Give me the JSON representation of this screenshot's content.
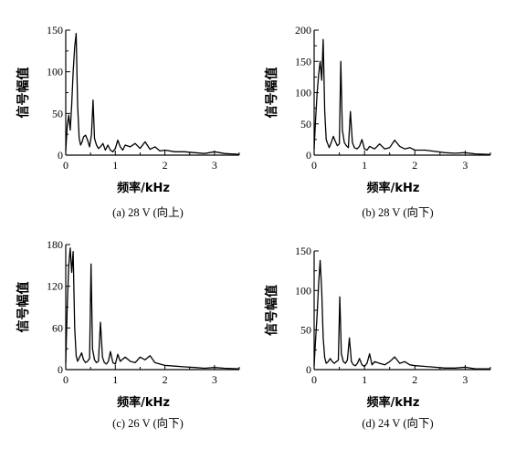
{
  "chart_data": [
    {
      "type": "line",
      "caption": "(a) 28 V (向上)",
      "xlabel": "频率/kHz",
      "ylabel": "信号幅值",
      "xlim": [
        0,
        3.5
      ],
      "ylim": [
        0,
        150
      ],
      "xticks": [
        "0",
        "1",
        "2",
        "3"
      ],
      "yticks": [
        "0",
        "50",
        "100",
        "150"
      ],
      "x": [
        0,
        0.03,
        0.06,
        0.09,
        0.12,
        0.15,
        0.18,
        0.21,
        0.24,
        0.27,
        0.3,
        0.33,
        0.36,
        0.4,
        0.44,
        0.48,
        0.52,
        0.55,
        0.58,
        0.62,
        0.66,
        0.7,
        0.75,
        0.8,
        0.85,
        0.9,
        0.95,
        1.0,
        1.05,
        1.1,
        1.15,
        1.2,
        1.3,
        1.4,
        1.5,
        1.6,
        1.7,
        1.8,
        1.9,
        2.0,
        2.2,
        2.4,
        2.6,
        2.8,
        3.0,
        3.2,
        3.5
      ],
      "y": [
        5,
        35,
        48,
        30,
        60,
        100,
        130,
        146,
        60,
        20,
        12,
        16,
        22,
        24,
        18,
        10,
        25,
        66,
        20,
        12,
        8,
        10,
        14,
        6,
        12,
        6,
        4,
        8,
        18,
        10,
        6,
        12,
        10,
        14,
        8,
        16,
        7,
        10,
        5,
        6,
        4,
        4,
        3,
        2,
        4,
        2,
        1
      ]
    },
    {
      "type": "line",
      "caption": "(b) 28 V (向下)",
      "xlabel": "频率/kHz",
      "ylabel": "信号幅值",
      "xlim": [
        0,
        3.5
      ],
      "ylim": [
        0,
        200
      ],
      "xticks": [
        "0",
        "1",
        "2",
        "3"
      ],
      "yticks": [
        "0",
        "50",
        "100",
        "150",
        "200"
      ],
      "x": [
        0,
        0.03,
        0.06,
        0.09,
        0.12,
        0.15,
        0.18,
        0.21,
        0.24,
        0.27,
        0.3,
        0.34,
        0.38,
        0.42,
        0.46,
        0.5,
        0.53,
        0.56,
        0.6,
        0.64,
        0.68,
        0.72,
        0.76,
        0.8,
        0.85,
        0.9,
        0.95,
        1.0,
        1.05,
        1.1,
        1.2,
        1.3,
        1.4,
        1.5,
        1.6,
        1.7,
        1.8,
        1.9,
        2.0,
        2.2,
        2.4,
        2.6,
        2.8,
        3.0,
        3.2,
        3.5
      ],
      "y": [
        10,
        60,
        100,
        130,
        150,
        120,
        185,
        70,
        25,
        18,
        12,
        20,
        30,
        22,
        15,
        18,
        150,
        40,
        20,
        15,
        12,
        70,
        20,
        12,
        10,
        14,
        25,
        10,
        8,
        14,
        10,
        18,
        10,
        12,
        24,
        14,
        10,
        12,
        8,
        8,
        6,
        4,
        3,
        4,
        2,
        1
      ]
    },
    {
      "type": "line",
      "caption": "(c) 26 V (向下)",
      "xlabel": "频率/kHz",
      "ylabel": "信号幅值",
      "xlim": [
        0,
        3.5
      ],
      "ylim": [
        0,
        180
      ],
      "xticks": [
        "0",
        "1",
        "2",
        "3"
      ],
      "yticks": [
        "0",
        "60",
        "120",
        "180"
      ],
      "x": [
        0,
        0.03,
        0.06,
        0.09,
        0.12,
        0.15,
        0.18,
        0.21,
        0.24,
        0.28,
        0.32,
        0.36,
        0.4,
        0.44,
        0.48,
        0.51,
        0.54,
        0.58,
        0.62,
        0.66,
        0.7,
        0.74,
        0.78,
        0.82,
        0.86,
        0.9,
        0.95,
        1.0,
        1.05,
        1.1,
        1.2,
        1.3,
        1.4,
        1.5,
        1.6,
        1.7,
        1.8,
        1.9,
        2.0,
        2.2,
        2.4,
        2.6,
        2.8,
        3.0,
        3.2,
        3.5
      ],
      "y": [
        10,
        90,
        150,
        175,
        140,
        170,
        60,
        20,
        12,
        18,
        24,
        14,
        10,
        12,
        16,
        152,
        30,
        14,
        10,
        12,
        68,
        18,
        10,
        8,
        12,
        26,
        10,
        8,
        22,
        12,
        18,
        12,
        10,
        18,
        14,
        20,
        10,
        8,
        6,
        5,
        4,
        3,
        2,
        3,
        2,
        1
      ]
    },
    {
      "type": "line",
      "caption": "(d) 24 V (向下)",
      "xlabel": "频率/kHz",
      "ylabel": "信号幅值",
      "xlim": [
        0,
        3.5
      ],
      "ylim": [
        0,
        150
      ],
      "xticks": [
        "0",
        "1",
        "2",
        "3"
      ],
      "yticks": [
        "0",
        "50",
        "100",
        "150"
      ],
      "x": [
        0,
        0.03,
        0.06,
        0.09,
        0.12,
        0.15,
        0.18,
        0.21,
        0.24,
        0.28,
        0.32,
        0.36,
        0.4,
        0.44,
        0.48,
        0.51,
        0.54,
        0.58,
        0.62,
        0.66,
        0.7,
        0.74,
        0.78,
        0.82,
        0.86,
        0.9,
        0.95,
        1.0,
        1.05,
        1.1,
        1.15,
        1.2,
        1.3,
        1.4,
        1.5,
        1.6,
        1.7,
        1.8,
        1.9,
        2.0,
        2.2,
        2.4,
        2.6,
        2.8,
        3.0,
        3.2,
        3.5
      ],
      "y": [
        5,
        40,
        70,
        110,
        138,
        100,
        40,
        15,
        8,
        10,
        14,
        10,
        8,
        10,
        12,
        92,
        20,
        10,
        8,
        12,
        40,
        10,
        6,
        5,
        8,
        14,
        6,
        4,
        8,
        20,
        6,
        10,
        8,
        6,
        10,
        16,
        8,
        10,
        6,
        5,
        4,
        3,
        2,
        2,
        3,
        1,
        1
      ]
    }
  ]
}
